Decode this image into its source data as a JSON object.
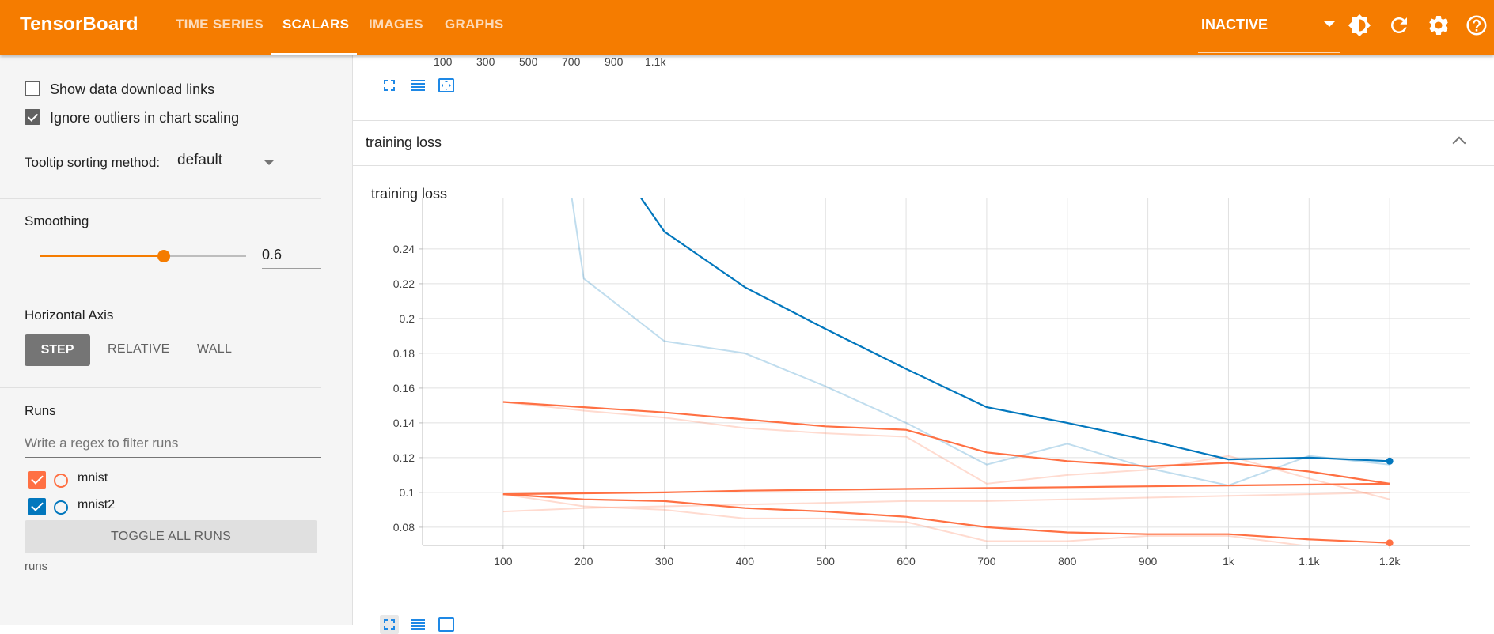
{
  "header": {
    "brand": "TensorBoard",
    "tabs": [
      {
        "label": "TIME SERIES",
        "active": false
      },
      {
        "label": "SCALARS",
        "active": true
      },
      {
        "label": "IMAGES",
        "active": false
      },
      {
        "label": "GRAPHS",
        "active": false
      }
    ],
    "run_state": "INACTIVE",
    "icons": [
      "brightness-icon",
      "refresh-icon",
      "settings-icon",
      "help-icon"
    ],
    "accent_color": "#f57c00"
  },
  "sidebar": {
    "show_download_links": {
      "label": "Show data download links",
      "checked": false
    },
    "ignore_outliers": {
      "label": "Ignore outliers in chart scaling",
      "checked": true
    },
    "tooltip_sorting": {
      "label": "Tooltip sorting method:",
      "value": "default"
    },
    "smoothing": {
      "label": "Smoothing",
      "value": "0.6",
      "fraction": 0.6
    },
    "horizontal_axis": {
      "label": "Horizontal Axis",
      "options": [
        "STEP",
        "RELATIVE",
        "WALL"
      ],
      "selected": "STEP"
    },
    "runs": {
      "label": "Runs",
      "filter_placeholder": "Write a regex to filter runs",
      "items": [
        {
          "name": "mnist",
          "checked": true,
          "color": "#ff7043"
        },
        {
          "name": "mnist2",
          "checked": true,
          "color": "#0277bd"
        }
      ],
      "toggle_label": "TOGGLE ALL RUNS",
      "footer": "runs"
    }
  },
  "main": {
    "previous_chart_ticks": [
      "100",
      "300",
      "500",
      "700",
      "900",
      "1.1k"
    ],
    "section_title": "training loss",
    "card_title": "training loss"
  },
  "chart_data": {
    "type": "line",
    "title": "training loss",
    "xlabel": "",
    "ylabel": "",
    "x_ticks": [
      100,
      200,
      300,
      400,
      500,
      600,
      700,
      800,
      900,
      1000,
      1100,
      1200
    ],
    "x_tick_labels": [
      "100",
      "200",
      "300",
      "400",
      "500",
      "600",
      "700",
      "800",
      "900",
      "1k",
      "1.1k",
      "1.2k"
    ],
    "y_ticks": [
      0.08,
      0.1,
      0.12,
      0.14,
      0.16,
      0.18,
      0.2,
      0.22,
      0.24
    ],
    "y_tick_labels": [
      "0.08",
      "0.1",
      "0.12",
      "0.14",
      "0.16",
      "0.18",
      "0.2",
      "0.22",
      "0.24"
    ],
    "xlim": [
      0,
      1300
    ],
    "ylim": [
      0.0695,
      0.2695
    ],
    "grid": true,
    "series": [
      {
        "color": "#0277bd",
        "opacity": 1,
        "x": [
          300,
          400,
          500,
          600,
          700,
          800,
          900,
          1000,
          1100,
          1200
        ],
        "y": [
          0.25,
          0.218,
          0.194,
          0.171,
          0.149,
          0.14,
          0.13,
          0.119,
          0.12,
          0.118
        ],
        "y_start_above": 0.27
      },
      {
        "color": "#0277bd",
        "opacity": 0.25,
        "x": [
          200,
          300,
          400,
          500,
          600,
          700,
          800,
          900,
          1000,
          1100,
          1200
        ],
        "y": [
          0.223,
          0.187,
          0.18,
          0.161,
          0.14,
          0.116,
          0.128,
          0.114,
          0.104,
          0.121,
          0.116
        ]
      },
      {
        "color": "#ff7043",
        "opacity": 1,
        "x": [
          100,
          200,
          300,
          400,
          500,
          600,
          700,
          800,
          900,
          1000,
          1100,
          1200
        ],
        "y": [
          0.152,
          0.149,
          0.146,
          0.142,
          0.138,
          0.136,
          0.123,
          0.118,
          0.115,
          0.117,
          0.112,
          0.105
        ]
      },
      {
        "color": "#ff7043",
        "opacity": 0.25,
        "x": [
          100,
          200,
          300,
          400,
          500,
          600,
          700,
          800,
          900,
          1000,
          1100,
          1200
        ],
        "y": [
          0.152,
          0.147,
          0.143,
          0.137,
          0.134,
          0.132,
          0.105,
          0.11,
          0.113,
          0.121,
          0.108,
          0.096
        ]
      },
      {
        "color": "#ff7043",
        "opacity": 1,
        "x": [
          100,
          200,
          300,
          400,
          500,
          600,
          700,
          800,
          900,
          1000,
          1100,
          1200
        ],
        "y": [
          0.099,
          0.0995,
          0.1,
          0.101,
          0.1015,
          0.102,
          0.1025,
          0.103,
          0.1035,
          0.104,
          0.1045,
          0.105
        ]
      },
      {
        "color": "#ff7043",
        "opacity": 0.25,
        "x": [
          100,
          200,
          300,
          400,
          500,
          600,
          700,
          800,
          900,
          1000,
          1100,
          1200
        ],
        "y": [
          0.089,
          0.091,
          0.092,
          0.093,
          0.094,
          0.095,
          0.095,
          0.096,
          0.097,
          0.098,
          0.099,
          0.1
        ]
      },
      {
        "color": "#ff7043",
        "opacity": 1,
        "x": [
          100,
          200,
          300,
          400,
          500,
          600,
          700,
          800,
          900,
          1000,
          1100,
          1200
        ],
        "y": [
          0.099,
          0.096,
          0.095,
          0.091,
          0.089,
          0.086,
          0.08,
          0.077,
          0.076,
          0.076,
          0.073,
          0.071
        ]
      },
      {
        "color": "#ff7043",
        "opacity": 0.25,
        "x": [
          100,
          200,
          300,
          400,
          500,
          600,
          700,
          800,
          900,
          1000,
          1100,
          1200
        ],
        "y": [
          0.099,
          0.092,
          0.09,
          0.085,
          0.085,
          0.083,
          0.072,
          0.072,
          0.075,
          0.075,
          0.069,
          0.068
        ]
      }
    ],
    "end_markers": [
      {
        "x": 1200,
        "y": 0.118,
        "color": "#0277bd"
      },
      {
        "x": 1200,
        "y": 0.071,
        "color": "#ff7043"
      }
    ]
  }
}
